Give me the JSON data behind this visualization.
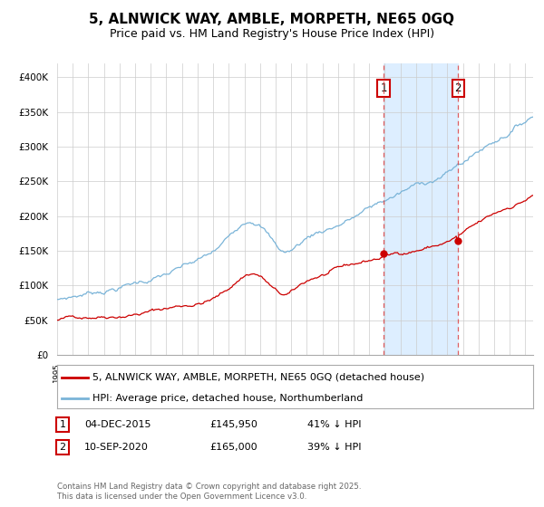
{
  "title": "5, ALNWICK WAY, AMBLE, MORPETH, NE65 0GQ",
  "subtitle": "Price paid vs. HM Land Registry's House Price Index (HPI)",
  "xlim_start": 1995.0,
  "xlim_end": 2025.5,
  "ylim": [
    0,
    420000
  ],
  "yticks": [
    0,
    50000,
    100000,
    150000,
    200000,
    250000,
    300000,
    350000,
    400000
  ],
  "ytick_labels": [
    "£0",
    "£50K",
    "£100K",
    "£150K",
    "£200K",
    "£250K",
    "£300K",
    "£350K",
    "£400K"
  ],
  "hpi_color": "#7ab4d8",
  "price_color": "#cc0000",
  "vline1_x": 2015.92,
  "vline2_x": 2020.69,
  "vline_color": "#dd4444",
  "shade_color": "#ddeeff",
  "legend_price_label": "5, ALNWICK WAY, AMBLE, MORPETH, NE65 0GQ (detached house)",
  "legend_hpi_label": "HPI: Average price, detached house, Northumberland",
  "table_row1": [
    "1",
    "04-DEC-2015",
    "£145,950",
    "41% ↓ HPI"
  ],
  "table_row2": [
    "2",
    "10-SEP-2020",
    "£165,000",
    "39% ↓ HPI"
  ],
  "footnote": "Contains HM Land Registry data © Crown copyright and database right 2025.\nThis data is licensed under the Open Government Licence v3.0.",
  "bg_color": "#ffffff",
  "grid_color": "#cccccc",
  "title_fontsize": 11,
  "subtitle_fontsize": 9,
  "axis_fontsize": 7.5,
  "legend_fontsize": 8
}
